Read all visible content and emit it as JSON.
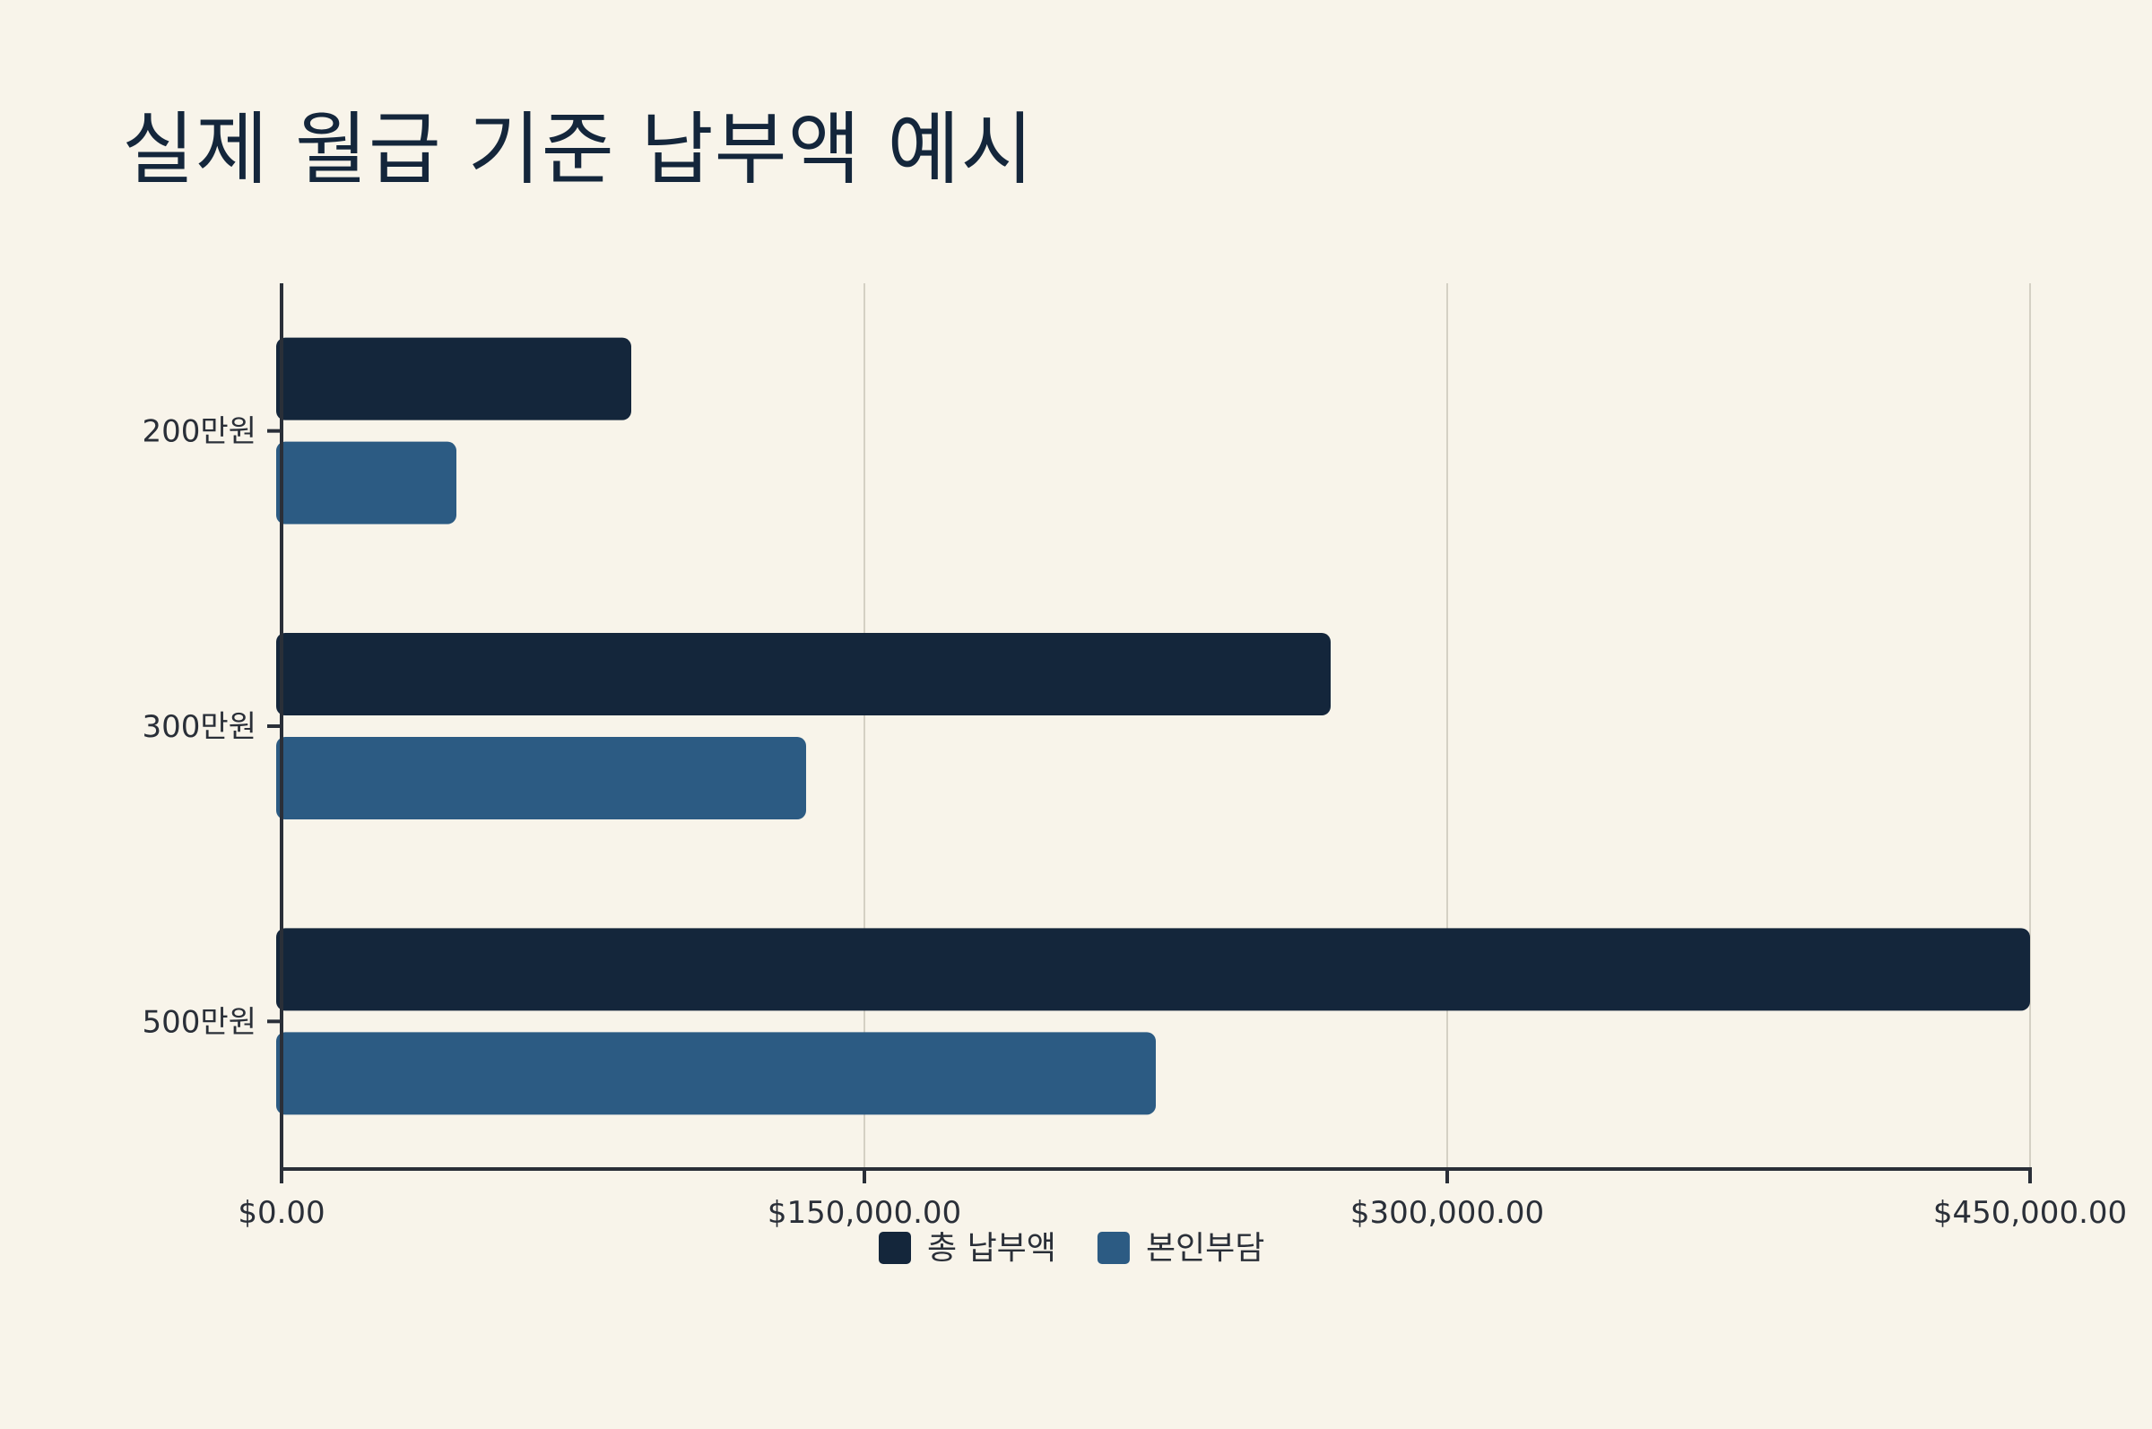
{
  "chart_data": {
    "type": "bar",
    "orientation": "horizontal",
    "title": "실제 월급 기준 납부액 예시",
    "xlabel": "",
    "ylabel": "",
    "categories": [
      "200만원",
      "300만원",
      "500만원"
    ],
    "series": [
      {
        "name": "총 납부액",
        "color": "#14263b",
        "values": [
          90000,
          270000,
          450000
        ]
      },
      {
        "name": "본인부담",
        "color": "#2c5b83",
        "values": [
          45000,
          135000,
          225000
        ]
      }
    ],
    "xlim": [
      0,
      450000
    ],
    "x_ticks": [
      0,
      150000,
      300000,
      450000
    ],
    "x_tick_labels": [
      "$0.00",
      "$150,000.00",
      "$300,000.00",
      "$450,000.00"
    ],
    "grid": "vertical",
    "legend_position": "bottom"
  }
}
